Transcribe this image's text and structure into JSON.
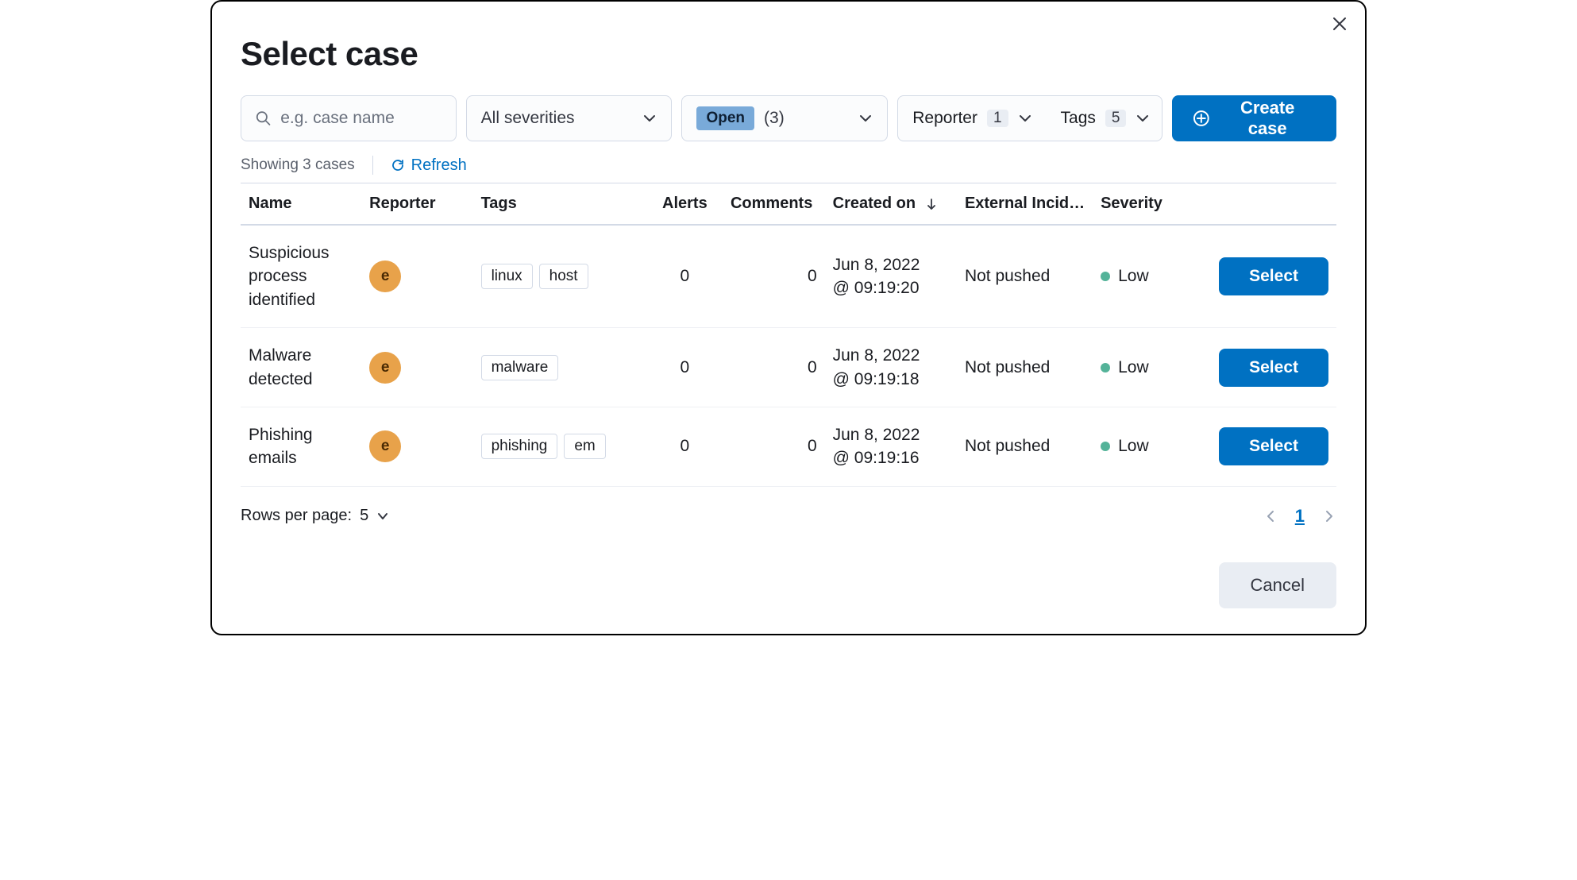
{
  "colors": {
    "primary": "#0071c2",
    "status_pill_bg": "#79aad9",
    "avatar_bg": "#e8a24a",
    "severity_low": "#54b399",
    "border": "#d3dae6",
    "badge_bg": "#e9edf3",
    "text_muted": "#69707d"
  },
  "modal": {
    "title": "Select case",
    "close_icon": "close"
  },
  "toolbar": {
    "search": {
      "placeholder": "e.g. case name"
    },
    "severity_filter": {
      "label": "All severities"
    },
    "status_filter": {
      "pill": "Open",
      "count_paren": "(3)"
    },
    "reporter_filter": {
      "label": "Reporter",
      "count": "1"
    },
    "tags_filter": {
      "label": "Tags",
      "count": "5"
    },
    "create_button": "Create case"
  },
  "meta": {
    "showing": "Showing 3 cases",
    "refresh": "Refresh"
  },
  "table": {
    "headers": {
      "name": "Name",
      "reporter": "Reporter",
      "tags": "Tags",
      "alerts": "Alerts",
      "comments": "Comments",
      "created": "Created on",
      "external": "External Incid…",
      "severity": "Severity"
    },
    "rows": [
      {
        "name": "Suspicious process identified",
        "reporter_initial": "e",
        "tags": [
          "linux",
          "host"
        ],
        "alerts": "0",
        "comments": "0",
        "created_line1": "Jun 8, 2022",
        "created_line2": "@ 09:19:20",
        "external": "Not pushed",
        "severity": "Low",
        "severity_color": "#54b399",
        "action": "Select"
      },
      {
        "name": "Malware detected",
        "reporter_initial": "e",
        "tags": [
          "malware"
        ],
        "alerts": "0",
        "comments": "0",
        "created_line1": "Jun 8, 2022",
        "created_line2": "@ 09:19:18",
        "external": "Not pushed",
        "severity": "Low",
        "severity_color": "#54b399",
        "action": "Select"
      },
      {
        "name": "Phishing emails",
        "reporter_initial": "e",
        "tags": [
          "phishing",
          "em"
        ],
        "alerts": "0",
        "comments": "0",
        "created_line1": "Jun 8, 2022",
        "created_line2": "@ 09:19:16",
        "external": "Not pushed",
        "severity": "Low",
        "severity_color": "#54b399",
        "action": "Select"
      }
    ]
  },
  "footer": {
    "rows_label": "Rows per page:",
    "rows_value": "5",
    "current_page": "1",
    "cancel": "Cancel"
  }
}
